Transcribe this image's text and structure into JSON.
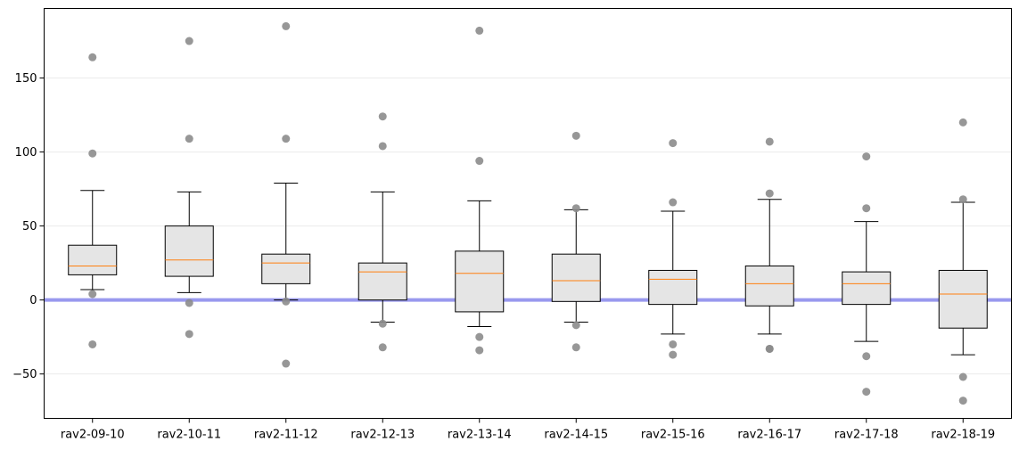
{
  "chart_data": {
    "type": "box",
    "title": "",
    "xlabel": "",
    "ylabel": "",
    "ylim": [
      -80,
      197
    ],
    "yticks": [
      -50,
      0,
      50,
      100,
      150
    ],
    "grid": "horizontal",
    "reference_line": {
      "y": 0,
      "color": "#9999ee"
    },
    "colors": {
      "box_fill": "#e5e5e5",
      "box_edge": "#000000",
      "median": "#ff7f0e",
      "outlier": "#8c8c8c",
      "grid": "#ebebeb"
    },
    "categories": [
      "rav2-09-10",
      "rav2-10-11",
      "rav2-11-12",
      "rav2-12-13",
      "rav2-13-14",
      "rav2-14-15",
      "rav2-15-16",
      "rav2-16-17",
      "rav2-17-18",
      "rav2-18-19"
    ],
    "boxes": [
      {
        "whisker_low": 7,
        "q1": 17,
        "median": 23,
        "q3": 37,
        "whisker_high": 74,
        "outliers": [
          164,
          99,
          4,
          -30
        ]
      },
      {
        "whisker_low": 5,
        "q1": 16,
        "median": 27,
        "q3": 50,
        "whisker_high": 73,
        "outliers": [
          175,
          109,
          -2,
          -23
        ]
      },
      {
        "whisker_low": 0,
        "q1": 11,
        "median": 25,
        "q3": 31,
        "whisker_high": 79,
        "outliers": [
          185,
          109,
          -1,
          -43
        ]
      },
      {
        "whisker_low": -15,
        "q1": 0,
        "median": 19,
        "q3": 25,
        "whisker_high": 73,
        "outliers": [
          124,
          104,
          -16,
          -32
        ]
      },
      {
        "whisker_low": -18,
        "q1": -8,
        "median": 18,
        "q3": 33,
        "whisker_high": 67,
        "outliers": [
          182,
          94,
          -25,
          -34
        ]
      },
      {
        "whisker_low": -15,
        "q1": -1,
        "median": 13,
        "q3": 31,
        "whisker_high": 61,
        "outliers": [
          111,
          62,
          -17,
          -32
        ]
      },
      {
        "whisker_low": -23,
        "q1": -3,
        "median": 14,
        "q3": 20,
        "whisker_high": 60,
        "outliers": [
          106,
          66,
          -30,
          -37
        ]
      },
      {
        "whisker_low": -23,
        "q1": -4,
        "median": 11,
        "q3": 23,
        "whisker_high": 68,
        "outliers": [
          107,
          72,
          -33,
          -33
        ]
      },
      {
        "whisker_low": -28,
        "q1": -3,
        "median": 11,
        "q3": 19,
        "whisker_high": 53,
        "outliers": [
          97,
          62,
          -38,
          -62
        ]
      },
      {
        "whisker_low": -37,
        "q1": -19,
        "median": 4,
        "q3": 20,
        "whisker_high": 66,
        "outliers": [
          120,
          68,
          -52,
          -68
        ]
      }
    ]
  }
}
